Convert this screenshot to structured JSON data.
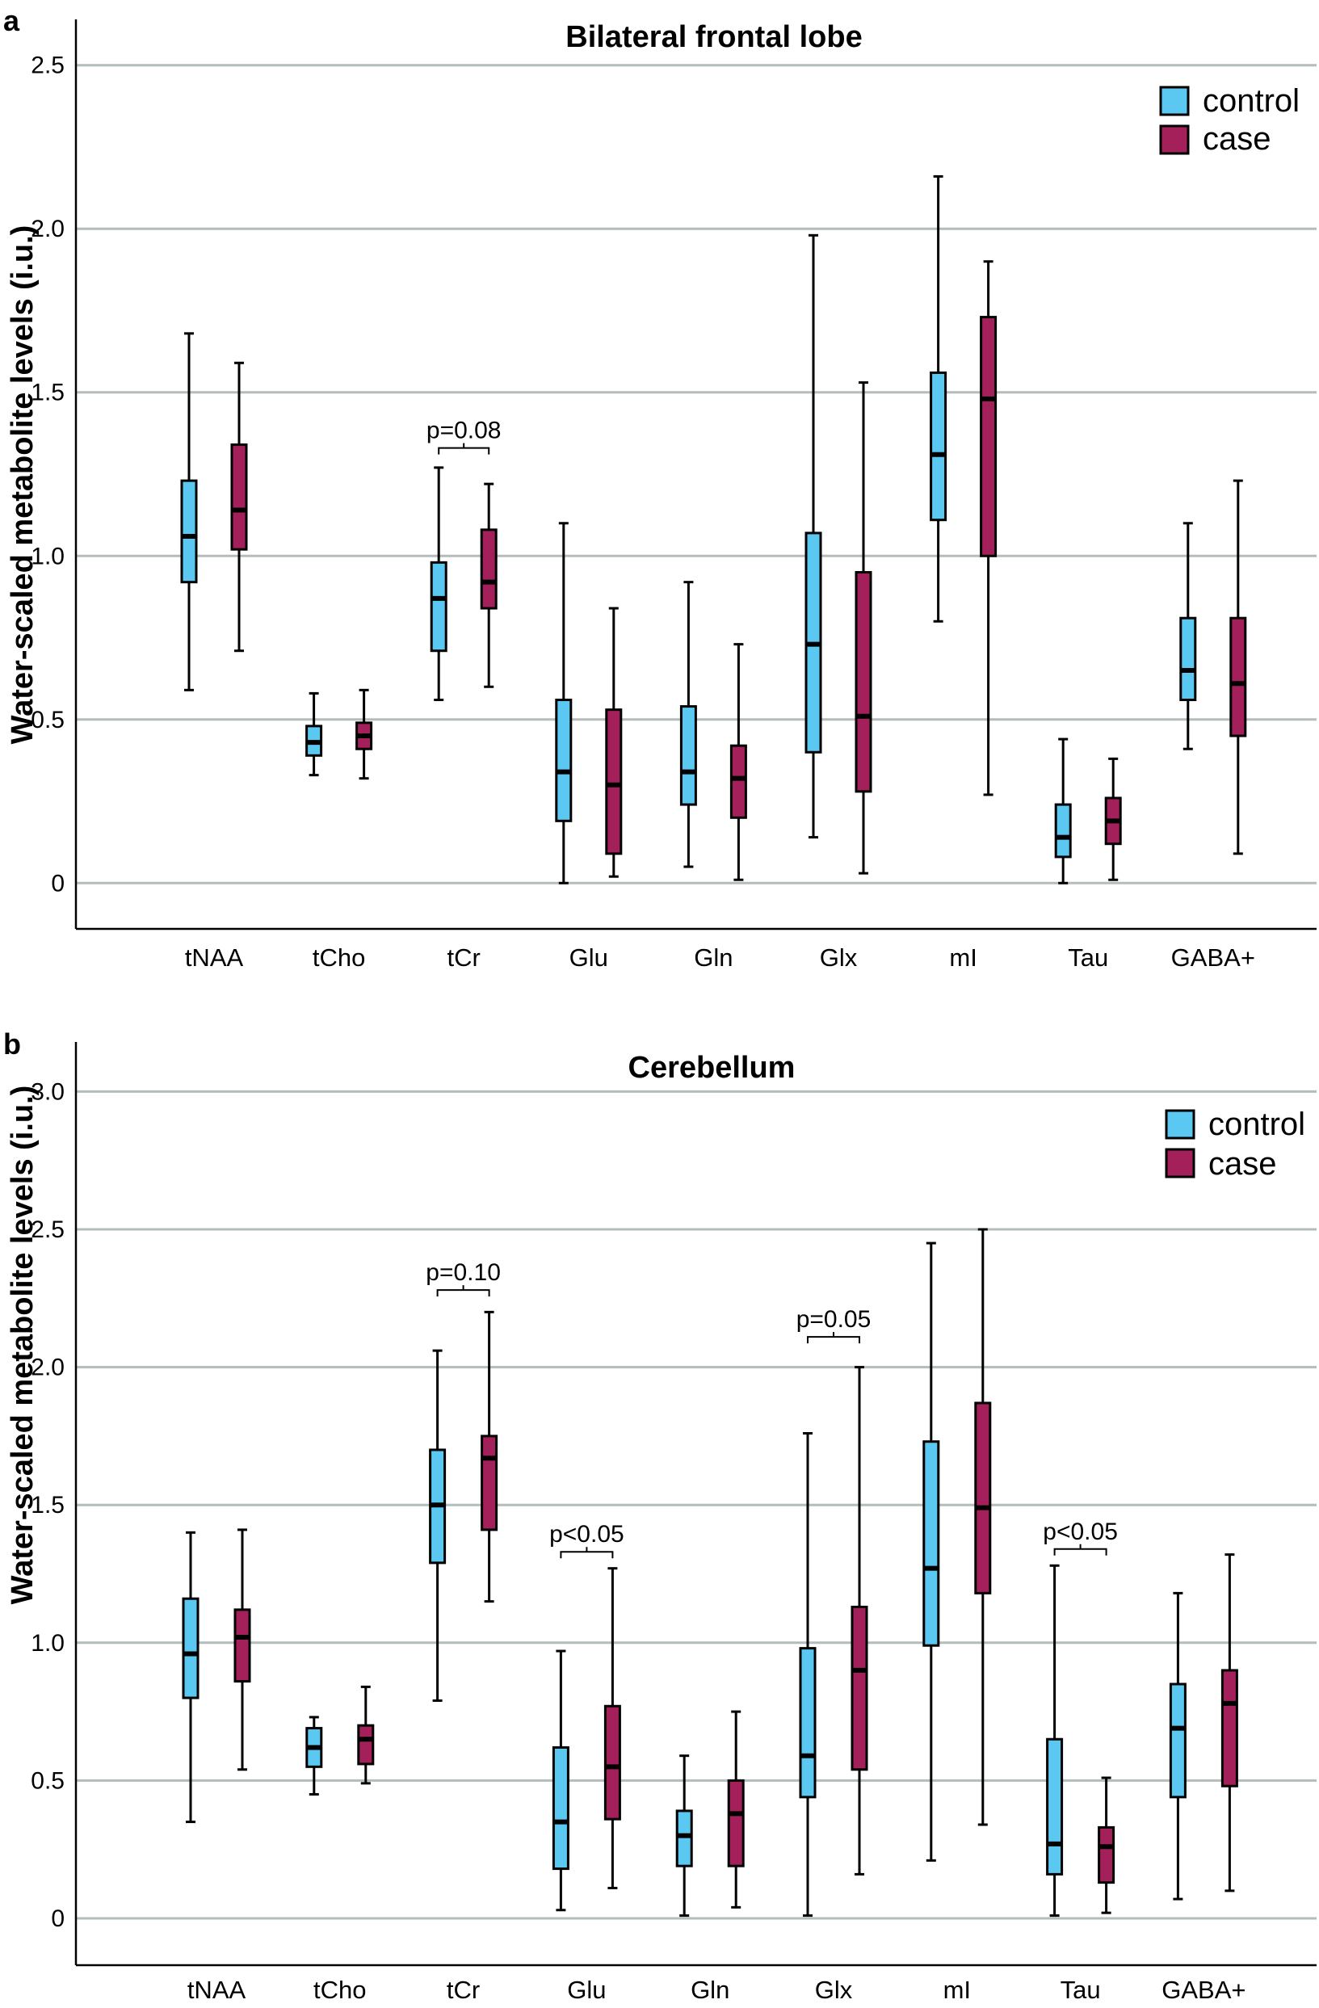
{
  "colors": {
    "control": "#5bc8f2",
    "case": "#a3205a",
    "grid": "#b4bcbc"
  },
  "chart_data": [
    {
      "type": "box",
      "panel_label": "a",
      "title": "Bilateral frontal lobe",
      "ylabel": "Water-scaled metabolite levels (i.u.)",
      "ylim": [
        -0.14,
        2.64
      ],
      "yticks": [
        0,
        0.5,
        1.0,
        1.5,
        2.0,
        2.5
      ],
      "ytick_labels": [
        "0",
        "0.5",
        "1.0",
        "1.5",
        "2.0",
        "2.5"
      ],
      "grid": true,
      "legend_position": "top-right",
      "legend": [
        "control",
        "case"
      ],
      "categories": [
        "tNAA",
        "tCho",
        "tCr",
        "Glu",
        "Gln",
        "Glx",
        "mI",
        "Tau",
        "GABA+"
      ],
      "series": [
        {
          "name": "control",
          "boxes": [
            {
              "min": 0.59,
              "q1": 0.92,
              "median": 1.06,
              "q3": 1.23,
              "max": 1.68
            },
            {
              "min": 0.33,
              "q1": 0.39,
              "median": 0.43,
              "q3": 0.48,
              "max": 0.58
            },
            {
              "min": 0.56,
              "q1": 0.71,
              "median": 0.87,
              "q3": 0.98,
              "max": 1.27
            },
            {
              "min": 0.0,
              "q1": 0.19,
              "median": 0.34,
              "q3": 0.56,
              "max": 1.1
            },
            {
              "min": 0.05,
              "q1": 0.24,
              "median": 0.34,
              "q3": 0.54,
              "max": 0.92
            },
            {
              "min": 0.14,
              "q1": 0.4,
              "median": 0.73,
              "q3": 1.07,
              "max": 1.98
            },
            {
              "min": 0.8,
              "q1": 1.11,
              "median": 1.31,
              "q3": 1.56,
              "max": 2.16
            },
            {
              "min": 0.0,
              "q1": 0.08,
              "median": 0.14,
              "q3": 0.24,
              "max": 0.44
            },
            {
              "min": 0.41,
              "q1": 0.56,
              "median": 0.65,
              "q3": 0.81,
              "max": 1.1
            }
          ]
        },
        {
          "name": "case",
          "boxes": [
            {
              "min": 0.71,
              "q1": 1.02,
              "median": 1.14,
              "q3": 1.34,
              "max": 1.59
            },
            {
              "min": 0.32,
              "q1": 0.41,
              "median": 0.45,
              "q3": 0.49,
              "max": 0.59
            },
            {
              "min": 0.6,
              "q1": 0.84,
              "median": 0.92,
              "q3": 1.08,
              "max": 1.22
            },
            {
              "min": 0.02,
              "q1": 0.09,
              "median": 0.3,
              "q3": 0.53,
              "max": 0.84
            },
            {
              "min": 0.01,
              "q1": 0.2,
              "median": 0.32,
              "q3": 0.42,
              "max": 0.73
            },
            {
              "min": 0.03,
              "q1": 0.28,
              "median": 0.51,
              "q3": 0.95,
              "max": 1.53
            },
            {
              "min": 0.27,
              "q1": 1.0,
              "median": 1.48,
              "q3": 1.73,
              "max": 1.9
            },
            {
              "min": 0.01,
              "q1": 0.12,
              "median": 0.19,
              "q3": 0.26,
              "max": 0.38
            },
            {
              "min": 0.09,
              "q1": 0.45,
              "median": 0.61,
              "q3": 0.81,
              "max": 1.23
            }
          ]
        }
      ],
      "annotations": [
        {
          "text": "p=0.08",
          "category": "tCr",
          "bracket_y": 1.33
        }
      ]
    },
    {
      "type": "box",
      "panel_label": "b",
      "title": "Cerebellum",
      "ylabel": "Water-scaled metabolite levels (i.u.)",
      "ylim": [
        -0.17,
        3.18
      ],
      "yticks": [
        0,
        0.5,
        1.0,
        1.5,
        2.0,
        2.5,
        3.0
      ],
      "ytick_labels": [
        "0",
        "0.5",
        "1.0",
        "1.5",
        "2.0",
        "2.5",
        "3.0"
      ],
      "grid": true,
      "legend_position": "top-right",
      "legend": [
        "control",
        "case"
      ],
      "categories": [
        "tNAA",
        "tCho",
        "tCr",
        "Glu",
        "Gln",
        "Glx",
        "mI",
        "Tau",
        "GABA+"
      ],
      "series": [
        {
          "name": "control",
          "boxes": [
            {
              "min": 0.35,
              "q1": 0.8,
              "median": 0.96,
              "q3": 1.16,
              "max": 1.4
            },
            {
              "min": 0.45,
              "q1": 0.55,
              "median": 0.62,
              "q3": 0.69,
              "max": 0.73
            },
            {
              "min": 0.79,
              "q1": 1.29,
              "median": 1.5,
              "q3": 1.7,
              "max": 2.06
            },
            {
              "min": 0.03,
              "q1": 0.18,
              "median": 0.35,
              "q3": 0.62,
              "max": 0.97
            },
            {
              "min": 0.01,
              "q1": 0.19,
              "median": 0.3,
              "q3": 0.39,
              "max": 0.59
            },
            {
              "min": 0.01,
              "q1": 0.44,
              "median": 0.59,
              "q3": 0.98,
              "max": 1.76
            },
            {
              "min": 0.21,
              "q1": 0.99,
              "median": 1.27,
              "q3": 1.73,
              "max": 2.45
            },
            {
              "min": 0.01,
              "q1": 0.16,
              "median": 0.27,
              "q3": 0.65,
              "max": 1.28
            },
            {
              "min": 0.07,
              "q1": 0.44,
              "median": 0.69,
              "q3": 0.85,
              "max": 1.18
            }
          ]
        },
        {
          "name": "case",
          "boxes": [
            {
              "min": 0.54,
              "q1": 0.86,
              "median": 1.02,
              "q3": 1.12,
              "max": 1.41
            },
            {
              "min": 0.49,
              "q1": 0.56,
              "median": 0.65,
              "q3": 0.7,
              "max": 0.84
            },
            {
              "min": 1.15,
              "q1": 1.41,
              "median": 1.67,
              "q3": 1.75,
              "max": 2.2
            },
            {
              "min": 0.11,
              "q1": 0.36,
              "median": 0.55,
              "q3": 0.77,
              "max": 1.27
            },
            {
              "min": 0.04,
              "q1": 0.19,
              "median": 0.38,
              "q3": 0.5,
              "max": 0.75
            },
            {
              "min": 0.16,
              "q1": 0.54,
              "median": 0.9,
              "q3": 1.13,
              "max": 2.0
            },
            {
              "min": 0.34,
              "q1": 1.18,
              "median": 1.49,
              "q3": 1.87,
              "max": 2.5
            },
            {
              "min": 0.02,
              "q1": 0.13,
              "median": 0.26,
              "q3": 0.33,
              "max": 0.51
            },
            {
              "min": 0.1,
              "q1": 0.48,
              "median": 0.78,
              "q3": 0.9,
              "max": 1.32
            }
          ]
        }
      ],
      "annotations": [
        {
          "text": "p=0.10",
          "category": "tCr",
          "bracket_y": 2.28
        },
        {
          "text": "p<0.05",
          "category": "Glu",
          "bracket_y": 1.33
        },
        {
          "text": "p=0.05",
          "category": "Glx",
          "bracket_y": 2.11
        },
        {
          "text": "p<0.05",
          "category": "Tau",
          "bracket_y": 1.34
        }
      ]
    }
  ]
}
